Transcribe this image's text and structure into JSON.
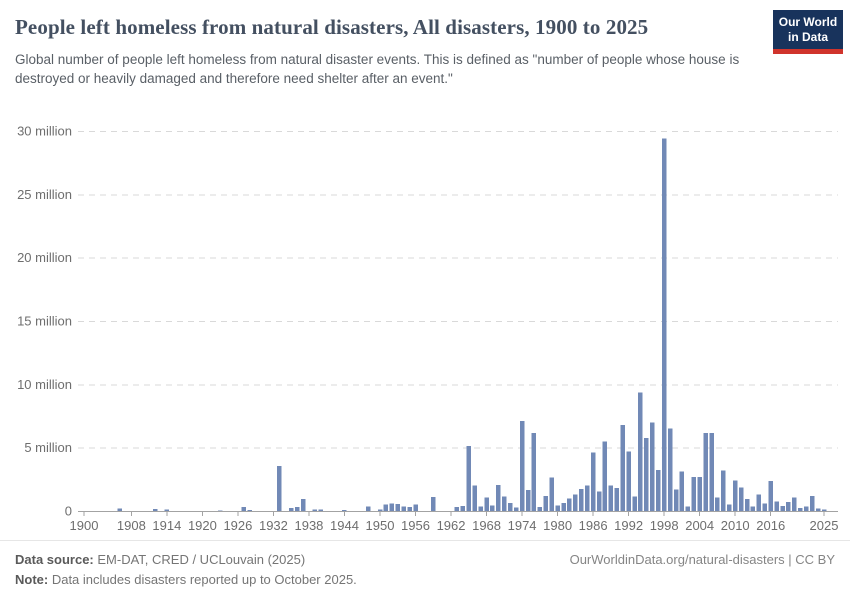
{
  "header": {
    "title": "People left homeless from natural disasters, All disasters, 1900 to 2025",
    "subtitle": "Global number of people left homeless from natural disaster events. This is defined as \"number of people whose house is destroyed or heavily damaged and therefore need shelter after an event.\"",
    "logo": {
      "line1": "Our World",
      "line2": "in Data"
    }
  },
  "footer": {
    "source_label": "Data source:",
    "source_text": " EM-DAT, CRED / UCLouvain (2025)",
    "note_label": "Note:",
    "note_text": " Data includes disasters reported up to October 2025.",
    "credit": "OurWorldinData.org/natural-disasters | CC BY"
  },
  "colors": {
    "bar": "#7189b6",
    "grid": "#d9d9d9",
    "axis": "#a3a3a3",
    "tick_label": "#6e6e6e",
    "logo_bg": "#18335c",
    "logo_red": "#d0342c",
    "title": "#445061"
  },
  "chart_data": {
    "type": "bar",
    "title": "People left homeless from natural disasters, All disasters, 1900 to 2025",
    "xlabel": "",
    "ylabel": "People left homeless",
    "unit": "million",
    "x_start": 1900,
    "x_end": 2025,
    "ylim": [
      0,
      30
    ],
    "grid": "dashed-horizontal",
    "legend": "none",
    "yticks": [
      0,
      5,
      10,
      15,
      20,
      25,
      30
    ],
    "ytick_labels": [
      "0",
      "5 million",
      "10 million",
      "15 million",
      "20 million",
      "25 million",
      "30 million"
    ],
    "xticks": [
      1900,
      1908,
      1914,
      1920,
      1926,
      1932,
      1938,
      1944,
      1950,
      1956,
      1962,
      1968,
      1974,
      1980,
      1986,
      1992,
      1998,
      2004,
      2010,
      2016,
      2025
    ],
    "values_unit_millions": [
      0,
      0,
      0,
      0,
      0,
      0,
      0.18,
      0,
      0,
      0,
      0,
      0,
      0.16,
      0,
      0.1,
      0,
      0,
      0,
      0,
      0,
      0,
      0,
      0,
      0.05,
      0,
      0,
      0,
      0.3,
      0.08,
      0,
      0,
      0,
      0,
      3.55,
      0,
      0.25,
      0.3,
      0.95,
      0,
      0.1,
      0.1,
      0,
      0,
      0,
      0.08,
      0,
      0,
      0,
      0.34,
      0,
      0.1,
      0.5,
      0.6,
      0.55,
      0.35,
      0.3,
      0.5,
      0,
      0,
      1.1,
      0,
      0,
      0,
      0.3,
      0.4,
      5.15,
      2.0,
      0.35,
      1.05,
      0.45,
      2.05,
      1.15,
      0.65,
      0.28,
      7.1,
      1.65,
      6.15,
      0.3,
      1.2,
      2.65,
      0.45,
      0.65,
      1.0,
      1.3,
      1.75,
      2.0,
      4.6,
      1.55,
      5.5,
      2.0,
      1.8,
      6.8,
      4.7,
      1.15,
      9.35,
      5.75,
      7.0,
      3.25,
      29.4,
      6.5,
      1.7,
      3.1,
      0.35,
      2.7,
      2.7,
      6.15,
      6.15,
      1.05,
      3.2,
      0.5,
      2.4,
      1.85,
      0.95,
      0.35,
      1.3,
      0.6,
      2.35,
      0.75,
      0.4,
      0.7,
      1.05,
      0.25,
      0.35,
      1.2,
      0.2,
      0.1
    ]
  }
}
